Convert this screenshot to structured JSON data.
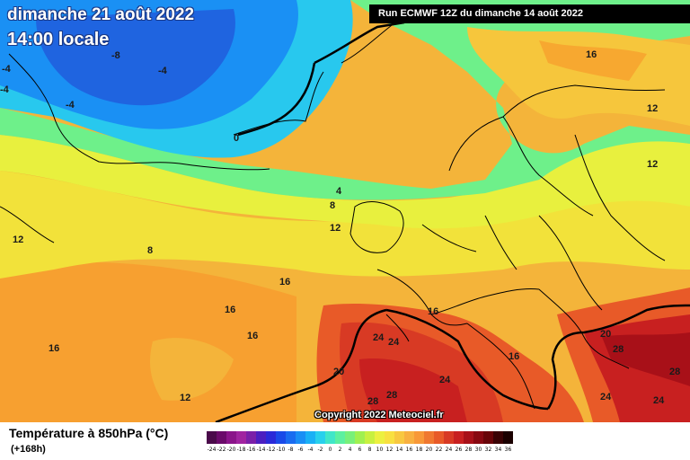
{
  "header": {
    "date": "dimanche 21 août 2022",
    "time": "14:00 locale",
    "run": "Run ECMWF 12Z du dimanche 14 août 2022"
  },
  "footer": {
    "copyright": "Copyright 2022 Meteociel.fr"
  },
  "legend": {
    "title": "Température à 850hPa (°C)",
    "subtitle": "(+168h)",
    "scale_values": [
      "-24",
      "-22",
      "-20",
      "-18",
      "-16",
      "-14",
      "-12",
      "-10",
      "-8",
      "-6",
      "-4",
      "-2",
      "0",
      "2",
      "4",
      "6",
      "8",
      "10",
      "12",
      "14",
      "16",
      "18",
      "20",
      "22",
      "24",
      "26",
      "28",
      "30",
      "32",
      "34",
      "36"
    ],
    "scale_colors": [
      "#4a0a4a",
      "#6a0a6a",
      "#8a148a",
      "#a023a0",
      "#7a1fa8",
      "#4b1fc0",
      "#2a2ad8",
      "#1a4ae8",
      "#1a6cf0",
      "#1a8ef5",
      "#1ab0f5",
      "#28d0ec",
      "#40e6c8",
      "#5cf0a0",
      "#78f07a",
      "#a0f050",
      "#c8f040",
      "#ecf040",
      "#f8e040",
      "#f8c840",
      "#f8b040",
      "#f89838",
      "#f07830",
      "#e85a28",
      "#d83a24",
      "#c82020",
      "#a81018",
      "#880810",
      "#680408",
      "#3a0204",
      "#1a0000"
    ]
  },
  "map": {
    "isotherm_labels": [
      "-8",
      "-4",
      "-4",
      "-4",
      "-4",
      "0",
      "4",
      "8",
      "12",
      "12",
      "16",
      "16",
      "16",
      "16",
      "16",
      "16",
      "16",
      "12",
      "12",
      "12",
      "8",
      "20",
      "20",
      "24",
      "24",
      "24",
      "28",
      "28",
      "28",
      "28",
      "24",
      "24"
    ]
  },
  "colors": {
    "cold": "#1f64e0",
    "cool": "#58e890",
    "mild": "#f2e83a",
    "warm": "#f7a830",
    "hot": "#d8302a",
    "very_hot": "#8a0a10"
  }
}
